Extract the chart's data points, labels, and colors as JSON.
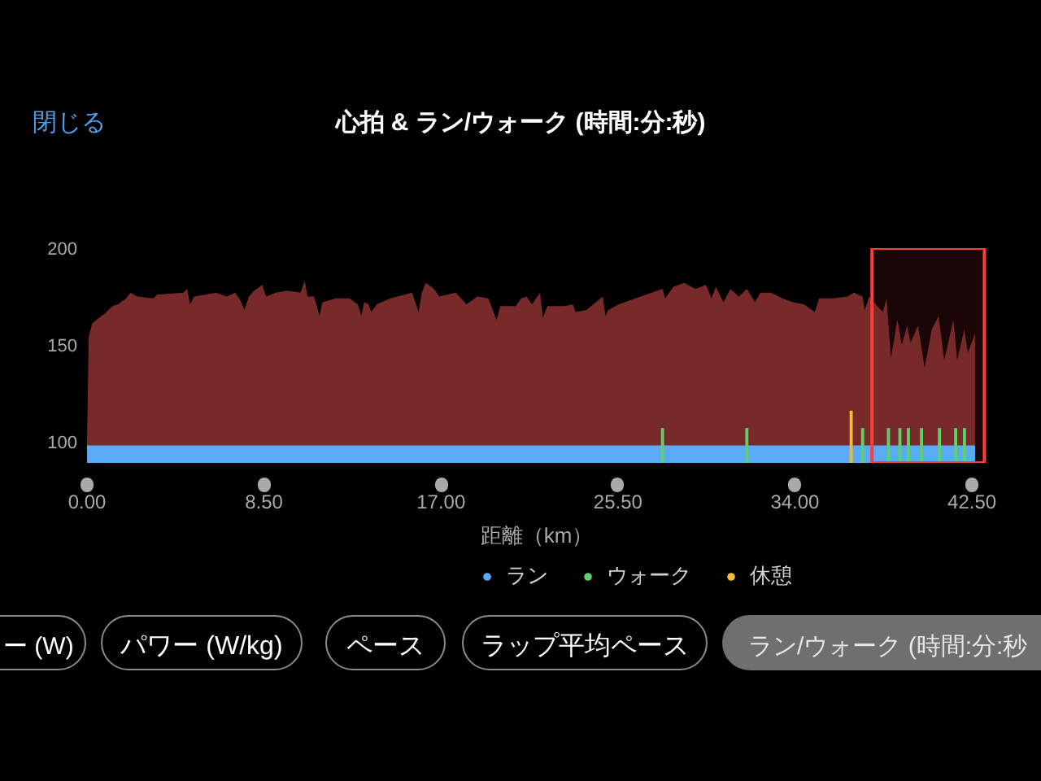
{
  "chart_data": {
    "type": "area",
    "title": "心拍 & ラン/ウォーク (時間:分:秒)",
    "xlabel": "距離（km）",
    "xlim": [
      0,
      43.2
    ],
    "xticks": [
      {
        "value": 0,
        "label": "0.00"
      },
      {
        "value": 8.5,
        "label": "8.50"
      },
      {
        "value": 17,
        "label": "17.00"
      },
      {
        "value": 25.5,
        "label": "25.50"
      },
      {
        "value": 34,
        "label": "34.00"
      },
      {
        "value": 42.5,
        "label": "42.50"
      }
    ],
    "ylim": [
      89,
      200
    ],
    "yticks": [
      100,
      150,
      200
    ],
    "grid": false,
    "legend": "bottom",
    "series": [
      {
        "color": "#782a2b",
        "x": [
          0,
          0.08,
          0.24,
          0.58,
          0.84,
          1.23,
          1.49,
          1.88,
          2.09,
          2.41,
          3.19,
          3.37,
          4.63,
          4.81,
          4.94,
          5.15,
          6.2,
          6.72,
          7.11,
          7.37,
          7.56,
          7.77,
          8.03,
          8.42,
          8.6,
          9.07,
          9.6,
          10.25,
          10.46,
          10.59,
          10.9,
          11.17,
          11.3,
          11.95,
          12.6,
          13.0,
          13.18,
          13.31,
          13.52,
          13.65,
          13.91,
          14.57,
          15.61,
          15.93,
          16.08,
          16.27,
          16.66,
          16.92,
          17.7,
          18.23,
          18.75,
          19.27,
          19.67,
          19.85,
          20.58,
          20.85,
          21.11,
          21.37,
          21.76,
          21.89,
          22.11,
          22.94,
          23.33,
          23.46,
          23.99,
          24.77,
          24.9,
          25.03,
          25.55,
          26.34,
          27.12,
          27.64,
          27.77,
          28.16,
          28.69,
          29.21,
          29.73,
          29.99,
          30.2,
          30.57,
          30.9,
          31.3,
          31.69,
          32.08,
          32.34,
          32.86,
          33.39,
          33.91,
          34.43,
          34.95,
          35.16,
          35.87,
          36.52,
          36.83,
          37.25,
          37.35,
          37.56,
          37.95,
          38.22,
          38.4,
          38.61,
          38.92,
          39.13,
          39.39,
          39.55,
          39.91,
          40.23,
          40.57,
          40.9,
          41.17,
          41.61,
          41.79,
          42.13,
          42.31,
          42.65
        ],
        "values": [
          100,
          154,
          161,
          164,
          166,
          170,
          171,
          174,
          177,
          175,
          174,
          176,
          177,
          179,
          171,
          175,
          177,
          175,
          177,
          173,
          168,
          175,
          178,
          181,
          175,
          177,
          178,
          177,
          183,
          175,
          175,
          165,
          172,
          174,
          174,
          171,
          165,
          172,
          171,
          167,
          171,
          174,
          177,
          167,
          177,
          182,
          179,
          175,
          177,
          171,
          175,
          174,
          163,
          170,
          170,
          174,
          175,
          171,
          177,
          164,
          170,
          170,
          171,
          167,
          168,
          175,
          165,
          168,
          171,
          174,
          177,
          179,
          174,
          180,
          182,
          179,
          181,
          174,
          180,
          172,
          179,
          175,
          179,
          172,
          177,
          177,
          174,
          172,
          171,
          167,
          174,
          174,
          175,
          177,
          175,
          168,
          175,
          170,
          167,
          174,
          143,
          163,
          150,
          160,
          151,
          160,
          138,
          158,
          165,
          142,
          163,
          142,
          158,
          146,
          156
        ]
      },
      {
        "name": "ラン",
        "type": "area",
        "color": "#5aabf6",
        "x": [
          0,
          42.65
        ],
        "values": [
          98,
          98
        ]
      },
      {
        "name": "ウォーク",
        "type": "bar",
        "color": "#5fd06a",
        "x": [
          27.64,
          31.69,
          37.25,
          38.49,
          39.04,
          39.45,
          40.08,
          40.94,
          41.72,
          42.14
        ],
        "values": [
          107,
          107,
          107,
          107,
          107,
          107,
          107,
          107,
          107,
          107
        ]
      },
      {
        "name": "休憩",
        "type": "bar",
        "color": "#f3bb2e",
        "x": [
          36.7
        ],
        "values": [
          116
        ]
      }
    ],
    "bands": [
      {
        "axis": "x",
        "from": 37.7,
        "to": 43.1,
        "color": "#ff3b3b"
      }
    ],
    "annotations": [
      "閉じる",
      "ー (W)",
      "パワー (W/kg)",
      "ペース",
      "ラップ平均ペース",
      "ラン/ウォーク (時間:分:秒"
    ]
  }
}
